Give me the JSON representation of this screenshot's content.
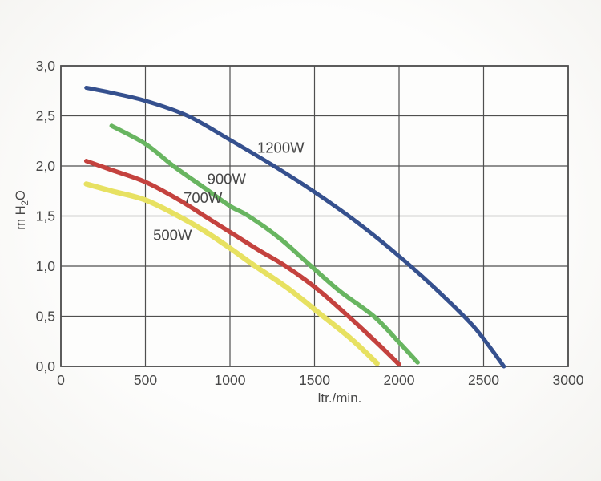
{
  "figure": {
    "page_bg": "#faf9f7",
    "plot_bg": "#fdfdfc",
    "grid_color": "#4f4f4f",
    "text_color": "#474747"
  },
  "chart_data": {
    "type": "line",
    "title": "",
    "xlabel": "ltr./min.",
    "ylabel": "m H2O",
    "ylabel_parts": {
      "pre": "m H",
      "sub": "2",
      "post": "O"
    },
    "xlim": [
      0,
      3000
    ],
    "ylim": [
      0,
      3.0
    ],
    "grid": true,
    "legend_position": "inline-curve-labels",
    "x_ticks": [
      0,
      500,
      1000,
      1500,
      2000,
      2500,
      3000
    ],
    "x_tick_labels": [
      "0",
      "500",
      "1000",
      "1500",
      "2000",
      "2500",
      "3000"
    ],
    "y_ticks": [
      0,
      0.5,
      1.0,
      1.5,
      2.0,
      2.5,
      3.0
    ],
    "y_tick_labels": [
      "0,0",
      "0,5",
      "1,0",
      "1,5",
      "2,0",
      "2,5",
      "3,0"
    ],
    "series": [
      {
        "name": "1200W",
        "color": "#35508e",
        "stroke_width": 5,
        "label_pos": [
          1300,
          2.18
        ],
        "points": [
          [
            150,
            2.78
          ],
          [
            300,
            2.73
          ],
          [
            500,
            2.65
          ],
          [
            750,
            2.5
          ],
          [
            1000,
            2.26
          ],
          [
            1250,
            2.01
          ],
          [
            1500,
            1.74
          ],
          [
            1750,
            1.44
          ],
          [
            2000,
            1.1
          ],
          [
            2250,
            0.72
          ],
          [
            2450,
            0.38
          ],
          [
            2620,
            0.0
          ]
        ]
      },
      {
        "name": "900W",
        "color": "#68b560",
        "stroke_width": 5.5,
        "label_pos": [
          980,
          1.87
        ],
        "points": [
          [
            300,
            2.4
          ],
          [
            500,
            2.22
          ],
          [
            665,
            2.0
          ],
          [
            850,
            1.78
          ],
          [
            1000,
            1.6
          ],
          [
            1110,
            1.5
          ],
          [
            1300,
            1.27
          ],
          [
            1480,
            1.0
          ],
          [
            1650,
            0.75
          ],
          [
            1850,
            0.5
          ],
          [
            2000,
            0.24
          ],
          [
            2110,
            0.04
          ]
        ]
      },
      {
        "name": "700W",
        "color": "#c4423e",
        "stroke_width": 5.5,
        "label_pos": [
          840,
          1.68
        ],
        "points": [
          [
            150,
            2.05
          ],
          [
            300,
            1.96
          ],
          [
            500,
            1.84
          ],
          [
            700,
            1.66
          ],
          [
            850,
            1.5
          ],
          [
            1000,
            1.34
          ],
          [
            1170,
            1.16
          ],
          [
            1330,
            1.0
          ],
          [
            1510,
            0.78
          ],
          [
            1700,
            0.5
          ],
          [
            1860,
            0.25
          ],
          [
            2000,
            0.02
          ]
        ]
      },
      {
        "name": "500W",
        "color": "#e7e161",
        "stroke_width": 6.5,
        "label_pos": [
          660,
          1.31
        ],
        "points": [
          [
            150,
            1.82
          ],
          [
            300,
            1.75
          ],
          [
            500,
            1.66
          ],
          [
            695,
            1.5
          ],
          [
            850,
            1.35
          ],
          [
            1000,
            1.18
          ],
          [
            1150,
            1.0
          ],
          [
            1350,
            0.77
          ],
          [
            1550,
            0.5
          ],
          [
            1720,
            0.27
          ],
          [
            1870,
            0.03
          ]
        ]
      }
    ]
  }
}
